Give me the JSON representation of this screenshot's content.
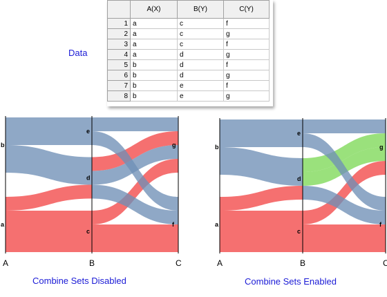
{
  "data_label": "Data",
  "table": {
    "columns": [
      "A(X)",
      "B(Y)",
      "C(Y)"
    ],
    "rows": [
      {
        "n": "1",
        "a": "a",
        "b": "c",
        "c": "f"
      },
      {
        "n": "2",
        "a": "a",
        "b": "c",
        "c": "g"
      },
      {
        "n": "3",
        "a": "a",
        "b": "c",
        "c": "f"
      },
      {
        "n": "4",
        "a": "a",
        "b": "d",
        "c": "g"
      },
      {
        "n": "5",
        "a": "b",
        "b": "d",
        "c": "f"
      },
      {
        "n": "6",
        "a": "b",
        "b": "d",
        "c": "g"
      },
      {
        "n": "7",
        "a": "b",
        "b": "e",
        "c": "f"
      },
      {
        "n": "8",
        "a": "b",
        "b": "e",
        "c": "g"
      }
    ]
  },
  "colors": {
    "blue": "#6f8fb6",
    "red": "#f24848",
    "green": "#7ed957",
    "caption": "#1b1bd6"
  },
  "chart_data": [
    {
      "type": "sankey",
      "caption": "Combine Sets Disabled",
      "axes": [
        "A",
        "B",
        "C"
      ],
      "node_labels": {
        "a": "a",
        "b": "b",
        "c": "c",
        "d": "d",
        "e": "e",
        "f": "f",
        "g": "g"
      },
      "combine_sets": false
    },
    {
      "type": "sankey",
      "caption": "Combine Sets Enabled",
      "axes": [
        "A",
        "B",
        "C"
      ],
      "node_labels": {
        "a": "a",
        "b": "b",
        "c": "c",
        "d": "d",
        "e": "e",
        "f": "f",
        "g": "g"
      },
      "combine_sets": true
    }
  ]
}
